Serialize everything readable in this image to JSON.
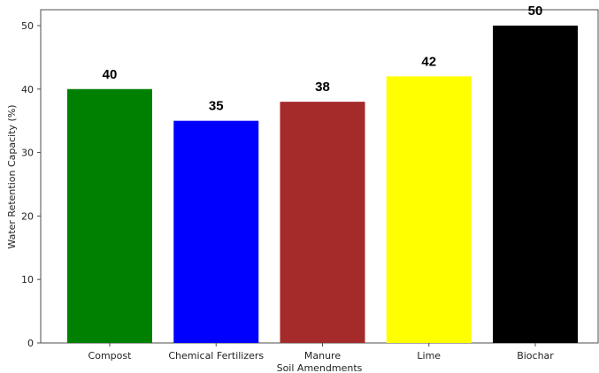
{
  "chart_data": {
    "type": "bar",
    "title": "",
    "xlabel": "Soil Amendments",
    "ylabel": "Water Retention Capacity (%)",
    "categories": [
      "Compost",
      "Chemical Fertilizers",
      "Manure",
      "Lime",
      "Biochar"
    ],
    "values": [
      40,
      35,
      38,
      42,
      50
    ],
    "data_labels": [
      "40",
      "35",
      "38",
      "42",
      "50"
    ],
    "colors": [
      "#008000",
      "#0000ff",
      "#a52a2a",
      "#ffff00",
      "#000000"
    ],
    "ylim": [
      0,
      52.5
    ],
    "yticks": [
      0,
      10,
      20,
      30,
      40,
      50
    ],
    "grid": false,
    "legend": "none"
  }
}
